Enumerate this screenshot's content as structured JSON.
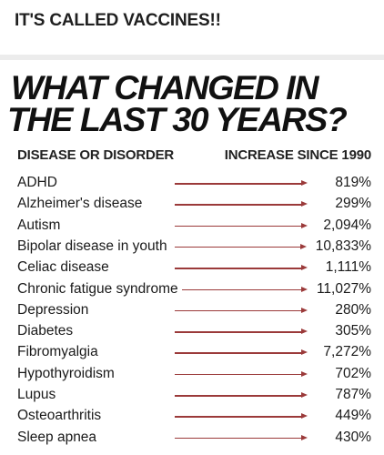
{
  "post": {
    "caption": "IT'S CALLED VACCINES!!"
  },
  "infographic": {
    "headline_line1": "WHAT CHANGED IN",
    "headline_line2": "THE LAST 30 YEARS?",
    "col_left": "DISEASE OR DISORDER",
    "col_right": "INCREASE SINCE 1990",
    "arrow_color": "#9b3a3a",
    "rows": [
      {
        "label": "ADHD",
        "value": "819%"
      },
      {
        "label": "Alzheimer's disease",
        "value": "299%"
      },
      {
        "label": "Autism",
        "value": "2,094%"
      },
      {
        "label": "Bipolar disease in youth",
        "value": "10,833%"
      },
      {
        "label": "Celiac disease",
        "value": "1,111%"
      },
      {
        "label": "Chronic fatigue syndrome",
        "value": "11,027%"
      },
      {
        "label": "Depression",
        "value": "280%"
      },
      {
        "label": "Diabetes",
        "value": "305%"
      },
      {
        "label": "Fibromyalgia",
        "value": "7,272%"
      },
      {
        "label": "Hypothyroidism",
        "value": "702%"
      },
      {
        "label": "Lupus",
        "value": "787%"
      },
      {
        "label": "Osteoarthritis",
        "value": "449%"
      },
      {
        "label": "Sleep apnea",
        "value": "430%"
      }
    ]
  }
}
